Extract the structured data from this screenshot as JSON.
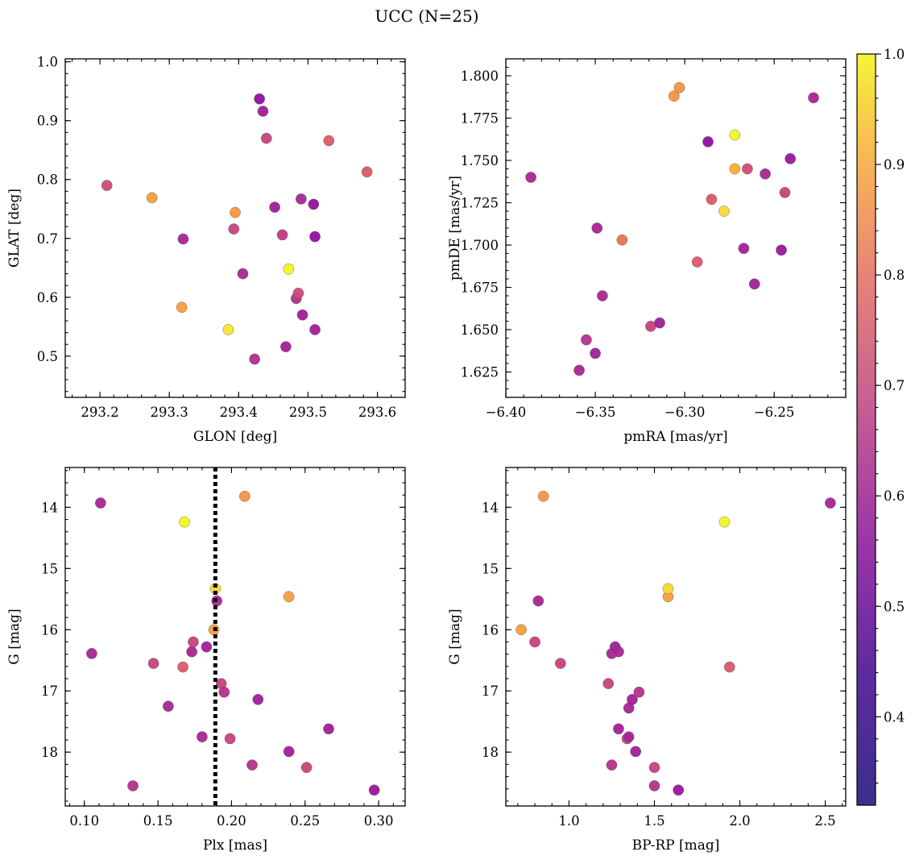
{
  "figure": {
    "title": "UCC (N=25)"
  },
  "colorbar": {
    "min": 0.32,
    "max": 1.0,
    "ticks": [
      0.4,
      0.5,
      0.6,
      0.7,
      0.8,
      0.9,
      1.0
    ],
    "tick_labels": [
      "0.4",
      "0.5",
      "0.6",
      "0.7",
      "0.8",
      "0.9",
      "1.0"
    ],
    "colormap": "plasma"
  },
  "chart_data": [
    {
      "type": "scatter",
      "xlabel": "GLON [deg]",
      "ylabel": "GLAT [deg]",
      "xlim": [
        293.15,
        293.64
      ],
      "ylim": [
        0.43,
        1.005
      ],
      "y_inverted": false,
      "xticks": [
        293.2,
        293.3,
        293.4,
        293.5,
        293.6
      ],
      "xtick_labels": [
        "293.2",
        "293.3",
        "293.4",
        "293.5",
        "293.6"
      ],
      "yticks": [
        0.5,
        0.6,
        0.7,
        0.8,
        0.9,
        1.0
      ],
      "ytick_labels": [
        "0.5",
        "0.6",
        "0.7",
        "0.8",
        "0.9",
        "1.0"
      ],
      "x_minor_step": 0.02,
      "y_minor_step": 0.02,
      "points": [
        {
          "x": 293.21,
          "y": 0.79,
          "c": 0.52
        },
        {
          "x": 293.275,
          "y": 0.769,
          "c": 0.72
        },
        {
          "x": 293.32,
          "y": 0.699,
          "c": 0.42
        },
        {
          "x": 293.318,
          "y": 0.583,
          "c": 0.72
        },
        {
          "x": 293.385,
          "y": 0.545,
          "c": 0.93
        },
        {
          "x": 293.395,
          "y": 0.744,
          "c": 0.7
        },
        {
          "x": 293.393,
          "y": 0.716,
          "c": 0.5
        },
        {
          "x": 293.406,
          "y": 0.64,
          "c": 0.42
        },
        {
          "x": 293.43,
          "y": 0.937,
          "c": 0.36
        },
        {
          "x": 293.435,
          "y": 0.916,
          "c": 0.4
        },
        {
          "x": 293.44,
          "y": 0.87,
          "c": 0.5
        },
        {
          "x": 293.423,
          "y": 0.495,
          "c": 0.44
        },
        {
          "x": 293.452,
          "y": 0.753,
          "c": 0.4
        },
        {
          "x": 293.463,
          "y": 0.706,
          "c": 0.48
        },
        {
          "x": 293.468,
          "y": 0.516,
          "c": 0.4
        },
        {
          "x": 293.472,
          "y": 0.648,
          "c": 1.0
        },
        {
          "x": 293.483,
          "y": 0.598,
          "c": 0.45
        },
        {
          "x": 293.486,
          "y": 0.607,
          "c": 0.52
        },
        {
          "x": 293.49,
          "y": 0.767,
          "c": 0.42
        },
        {
          "x": 293.492,
          "y": 0.57,
          "c": 0.4
        },
        {
          "x": 293.508,
          "y": 0.758,
          "c": 0.36
        },
        {
          "x": 293.51,
          "y": 0.703,
          "c": 0.36
        },
        {
          "x": 293.51,
          "y": 0.545,
          "c": 0.4
        },
        {
          "x": 293.53,
          "y": 0.866,
          "c": 0.56
        },
        {
          "x": 293.585,
          "y": 0.813,
          "c": 0.56
        }
      ]
    },
    {
      "type": "scatter",
      "xlabel": "pmRA [mas/yr]",
      "ylabel": "pmDE [mas/yr]",
      "xlim": [
        -6.4,
        -6.21
      ],
      "ylim": [
        1.61,
        1.81
      ],
      "y_inverted": false,
      "xticks": [
        -6.4,
        -6.35,
        -6.3,
        -6.25
      ],
      "xtick_labels": [
        "−6.40",
        "−6.35",
        "−6.30",
        "−6.25"
      ],
      "yticks": [
        1.625,
        1.65,
        1.675,
        1.7,
        1.725,
        1.75,
        1.775,
        1.8
      ],
      "ytick_labels": [
        "1.625",
        "1.650",
        "1.675",
        "1.700",
        "1.725",
        "1.750",
        "1.775",
        "1.800"
      ],
      "x_minor_step": 0.01,
      "y_minor_step": 0.005,
      "points": [
        {
          "x": -6.386,
          "y": 1.74,
          "c": 0.42
        },
        {
          "x": -6.359,
          "y": 1.626,
          "c": 0.42
        },
        {
          "x": -6.355,
          "y": 1.644,
          "c": 0.45
        },
        {
          "x": -6.35,
          "y": 1.636,
          "c": 0.4
        },
        {
          "x": -6.349,
          "y": 1.71,
          "c": 0.42
        },
        {
          "x": -6.346,
          "y": 1.67,
          "c": 0.42
        },
        {
          "x": -6.335,
          "y": 1.703,
          "c": 0.62
        },
        {
          "x": -6.319,
          "y": 1.652,
          "c": 0.5
        },
        {
          "x": -6.314,
          "y": 1.654,
          "c": 0.4
        },
        {
          "x": -6.306,
          "y": 1.788,
          "c": 0.7
        },
        {
          "x": -6.303,
          "y": 1.793,
          "c": 0.7
        },
        {
          "x": -6.293,
          "y": 1.69,
          "c": 0.56
        },
        {
          "x": -6.287,
          "y": 1.761,
          "c": 0.36
        },
        {
          "x": -6.285,
          "y": 1.727,
          "c": 0.56
        },
        {
          "x": -6.278,
          "y": 1.72,
          "c": 0.88
        },
        {
          "x": -6.272,
          "y": 1.765,
          "c": 1.0
        },
        {
          "x": -6.272,
          "y": 1.745,
          "c": 0.75
        },
        {
          "x": -6.267,
          "y": 1.698,
          "c": 0.4
        },
        {
          "x": -6.265,
          "y": 1.745,
          "c": 0.52
        },
        {
          "x": -6.261,
          "y": 1.677,
          "c": 0.4
        },
        {
          "x": -6.255,
          "y": 1.742,
          "c": 0.42
        },
        {
          "x": -6.246,
          "y": 1.697,
          "c": 0.38
        },
        {
          "x": -6.244,
          "y": 1.731,
          "c": 0.5
        },
        {
          "x": -6.241,
          "y": 1.751,
          "c": 0.38
        },
        {
          "x": -6.228,
          "y": 1.787,
          "c": 0.42
        }
      ]
    },
    {
      "type": "scatter",
      "xlabel": "Plx [mas]",
      "ylabel": "G [mag]",
      "xlim": [
        0.087,
        0.318
      ],
      "ylim": [
        13.35,
        18.88
      ],
      "y_inverted": true,
      "xticks": [
        0.1,
        0.15,
        0.2,
        0.25,
        0.3
      ],
      "xtick_labels": [
        "0.10",
        "0.15",
        "0.20",
        "0.25",
        "0.30"
      ],
      "yticks": [
        14,
        15,
        16,
        17,
        18
      ],
      "ytick_labels": [
        "14",
        "15",
        "16",
        "17",
        "18"
      ],
      "x_minor_step": 0.01,
      "y_minor_step": 0.2,
      "vline": {
        "x": 0.189,
        "style": "dotted"
      },
      "points": [
        {
          "x": 0.111,
          "y": 13.93,
          "c": 0.42
        },
        {
          "x": 0.105,
          "y": 16.39,
          "c": 0.42
        },
        {
          "x": 0.133,
          "y": 18.55,
          "c": 0.45
        },
        {
          "x": 0.147,
          "y": 16.55,
          "c": 0.5
        },
        {
          "x": 0.157,
          "y": 17.25,
          "c": 0.42
        },
        {
          "x": 0.167,
          "y": 16.61,
          "c": 0.56
        },
        {
          "x": 0.168,
          "y": 14.24,
          "c": 1.0
        },
        {
          "x": 0.173,
          "y": 16.36,
          "c": 0.42
        },
        {
          "x": 0.174,
          "y": 16.2,
          "c": 0.5
        },
        {
          "x": 0.18,
          "y": 17.75,
          "c": 0.42
        },
        {
          "x": 0.183,
          "y": 16.28,
          "c": 0.4
        },
        {
          "x": 0.188,
          "y": 16.0,
          "c": 0.72
        },
        {
          "x": 0.189,
          "y": 15.33,
          "c": 0.88
        },
        {
          "x": 0.19,
          "y": 15.53,
          "c": 0.42
        },
        {
          "x": 0.193,
          "y": 16.88,
          "c": 0.5
        },
        {
          "x": 0.195,
          "y": 17.02,
          "c": 0.45
        },
        {
          "x": 0.199,
          "y": 17.78,
          "c": 0.5
        },
        {
          "x": 0.209,
          "y": 13.82,
          "c": 0.7
        },
        {
          "x": 0.214,
          "y": 18.21,
          "c": 0.45
        },
        {
          "x": 0.218,
          "y": 17.14,
          "c": 0.4
        },
        {
          "x": 0.239,
          "y": 15.46,
          "c": 0.72
        },
        {
          "x": 0.239,
          "y": 17.99,
          "c": 0.4
        },
        {
          "x": 0.251,
          "y": 18.25,
          "c": 0.5
        },
        {
          "x": 0.266,
          "y": 17.62,
          "c": 0.4
        },
        {
          "x": 0.297,
          "y": 18.62,
          "c": 0.38
        }
      ]
    },
    {
      "type": "scatter",
      "xlabel": "BP-RP [mag]",
      "ylabel": "G [mag]",
      "xlim": [
        0.63,
        2.62
      ],
      "ylim": [
        13.35,
        18.88
      ],
      "y_inverted": true,
      "xticks": [
        1.0,
        1.5,
        2.0,
        2.5
      ],
      "xtick_labels": [
        "1.0",
        "1.5",
        "2.0",
        "2.5"
      ],
      "yticks": [
        14,
        15,
        16,
        17,
        18
      ],
      "ytick_labels": [
        "14",
        "15",
        "16",
        "17",
        "18"
      ],
      "x_minor_step": 0.1,
      "y_minor_step": 0.2,
      "points": [
        {
          "x": 0.72,
          "y": 16.0,
          "c": 0.72
        },
        {
          "x": 0.8,
          "y": 16.2,
          "c": 0.5
        },
        {
          "x": 0.82,
          "y": 15.53,
          "c": 0.42
        },
        {
          "x": 0.85,
          "y": 13.82,
          "c": 0.7
        },
        {
          "x": 0.95,
          "y": 16.55,
          "c": 0.5
        },
        {
          "x": 1.23,
          "y": 16.88,
          "c": 0.5
        },
        {
          "x": 1.25,
          "y": 16.39,
          "c": 0.42
        },
        {
          "x": 1.25,
          "y": 18.21,
          "c": 0.45
        },
        {
          "x": 1.27,
          "y": 16.28,
          "c": 0.4
        },
        {
          "x": 1.29,
          "y": 16.36,
          "c": 0.42
        },
        {
          "x": 1.29,
          "y": 17.62,
          "c": 0.4
        },
        {
          "x": 1.34,
          "y": 17.78,
          "c": 0.5
        },
        {
          "x": 1.35,
          "y": 17.75,
          "c": 0.42
        },
        {
          "x": 1.35,
          "y": 17.28,
          "c": 0.42
        },
        {
          "x": 1.37,
          "y": 17.14,
          "c": 0.4
        },
        {
          "x": 1.39,
          "y": 17.99,
          "c": 0.4
        },
        {
          "x": 1.41,
          "y": 17.02,
          "c": 0.45
        },
        {
          "x": 1.5,
          "y": 18.25,
          "c": 0.5
        },
        {
          "x": 1.5,
          "y": 18.55,
          "c": 0.45
        },
        {
          "x": 1.58,
          "y": 15.46,
          "c": 0.72
        },
        {
          "x": 1.58,
          "y": 15.33,
          "c": 0.88
        },
        {
          "x": 1.64,
          "y": 18.62,
          "c": 0.38
        },
        {
          "x": 1.91,
          "y": 14.24,
          "c": 1.0
        },
        {
          "x": 1.94,
          "y": 16.61,
          "c": 0.56
        },
        {
          "x": 2.53,
          "y": 13.93,
          "c": 0.42
        }
      ]
    }
  ]
}
